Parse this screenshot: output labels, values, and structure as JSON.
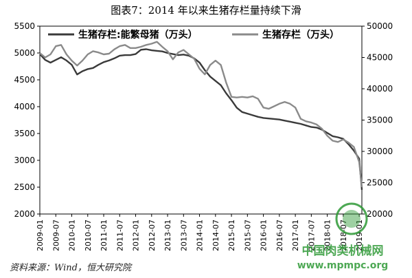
{
  "title": "图表7：2014 年以来生猪存栏量持续下滑",
  "source": "资料来源：Wind，恒大研究院",
  "watermark": {
    "line1": "中国肉类机械网",
    "line2": "www.mpmpc.org"
  },
  "colors": {
    "series1": "#3a3a3a",
    "series2": "#8a8a8a",
    "axis": "#000000",
    "watermark": "#2f9a37"
  },
  "chart_data": {
    "type": "line",
    "x_ticks": [
      "2009-01",
      "2009-07",
      "2010-01",
      "2010-07",
      "2011-01",
      "2011-07",
      "2012-01",
      "2012-07",
      "2013-01",
      "2013-07",
      "2014-01",
      "2014-07",
      "2015-01",
      "2015-07",
      "2016-01",
      "2016-07",
      "2017-01",
      "2017-07",
      "2018-01",
      "2018-07",
      "2019-01"
    ],
    "y_left": {
      "min": 2000,
      "max": 5500,
      "ticks": [
        2000,
        2500,
        3000,
        3500,
        4000,
        4500,
        5000,
        5500
      ]
    },
    "y_right": {
      "min": 20000,
      "max": 50000,
      "ticks": [
        20000,
        25000,
        30000,
        35000,
        40000,
        45000,
        50000
      ]
    },
    "legend_position": "top",
    "series": [
      {
        "name": "生猪存栏:能繁母猪（万头）",
        "axis": "left",
        "x": [
          "2009-01",
          "2009-03",
          "2009-05",
          "2009-07",
          "2009-09",
          "2009-11",
          "2010-01",
          "2010-03",
          "2010-05",
          "2010-07",
          "2010-09",
          "2010-11",
          "2011-01",
          "2011-03",
          "2011-05",
          "2011-07",
          "2011-09",
          "2011-11",
          "2012-01",
          "2012-03",
          "2012-05",
          "2012-07",
          "2012-09",
          "2012-11",
          "2013-01",
          "2013-03",
          "2013-05",
          "2013-07",
          "2013-09",
          "2013-11",
          "2014-01",
          "2014-03",
          "2014-05",
          "2014-07",
          "2014-09",
          "2014-11",
          "2015-01",
          "2015-03",
          "2015-05",
          "2015-07",
          "2015-09",
          "2015-11",
          "2016-01",
          "2016-03",
          "2016-05",
          "2016-07",
          "2016-09",
          "2016-11",
          "2017-01",
          "2017-03",
          "2017-05",
          "2017-07",
          "2017-09",
          "2017-11",
          "2018-01",
          "2018-03",
          "2018-05",
          "2018-07",
          "2018-09",
          "2018-11",
          "2019-01",
          "2019-02"
        ],
        "y": [
          4980,
          4870,
          4820,
          4870,
          4920,
          4860,
          4780,
          4600,
          4660,
          4700,
          4720,
          4780,
          4830,
          4860,
          4900,
          4950,
          4960,
          4960,
          4980,
          5060,
          5070,
          5050,
          5040,
          5030,
          5000,
          4980,
          4960,
          4970,
          4950,
          4900,
          4820,
          4680,
          4560,
          4480,
          4400,
          4250,
          4120,
          3980,
          3900,
          3870,
          3840,
          3810,
          3790,
          3780,
          3770,
          3760,
          3740,
          3720,
          3700,
          3680,
          3650,
          3620,
          3610,
          3570,
          3510,
          3450,
          3430,
          3400,
          3300,
          3180,
          3030,
          2450
        ]
      },
      {
        "name": "生猪存栏（万头）",
        "axis": "right",
        "x": [
          "2009-01",
          "2009-03",
          "2009-05",
          "2009-07",
          "2009-09",
          "2009-11",
          "2010-01",
          "2010-03",
          "2010-05",
          "2010-07",
          "2010-09",
          "2010-11",
          "2011-01",
          "2011-03",
          "2011-05",
          "2011-07",
          "2011-09",
          "2011-11",
          "2012-01",
          "2012-03",
          "2012-05",
          "2012-07",
          "2012-09",
          "2012-11",
          "2013-01",
          "2013-03",
          "2013-05",
          "2013-07",
          "2013-09",
          "2013-11",
          "2014-01",
          "2014-03",
          "2014-05",
          "2014-07",
          "2014-09",
          "2014-11",
          "2015-01",
          "2015-03",
          "2015-05",
          "2015-07",
          "2015-09",
          "2015-11",
          "2016-01",
          "2016-03",
          "2016-05",
          "2016-07",
          "2016-09",
          "2016-11",
          "2017-01",
          "2017-03",
          "2017-05",
          "2017-07",
          "2017-09",
          "2017-11",
          "2018-01",
          "2018-03",
          "2018-05",
          "2018-07",
          "2018-09",
          "2018-11",
          "2019-01",
          "2019-02"
        ],
        "y": [
          45700,
          45000,
          45500,
          46800,
          47000,
          45500,
          44500,
          43700,
          44500,
          45500,
          46000,
          45800,
          45500,
          45600,
          46300,
          46800,
          47000,
          46500,
          46500,
          46700,
          47000,
          47200,
          47500,
          46700,
          46000,
          44700,
          45800,
          46200,
          45500,
          44800,
          43200,
          42300,
          43800,
          44500,
          43800,
          41000,
          38700,
          38600,
          38700,
          38600,
          38800,
          38400,
          37000,
          36800,
          37200,
          37600,
          37900,
          37600,
          37000,
          35200,
          34800,
          34600,
          34300,
          33600,
          32500,
          31700,
          31500,
          31900,
          31400,
          30700,
          28300,
          24300
        ]
      }
    ]
  }
}
